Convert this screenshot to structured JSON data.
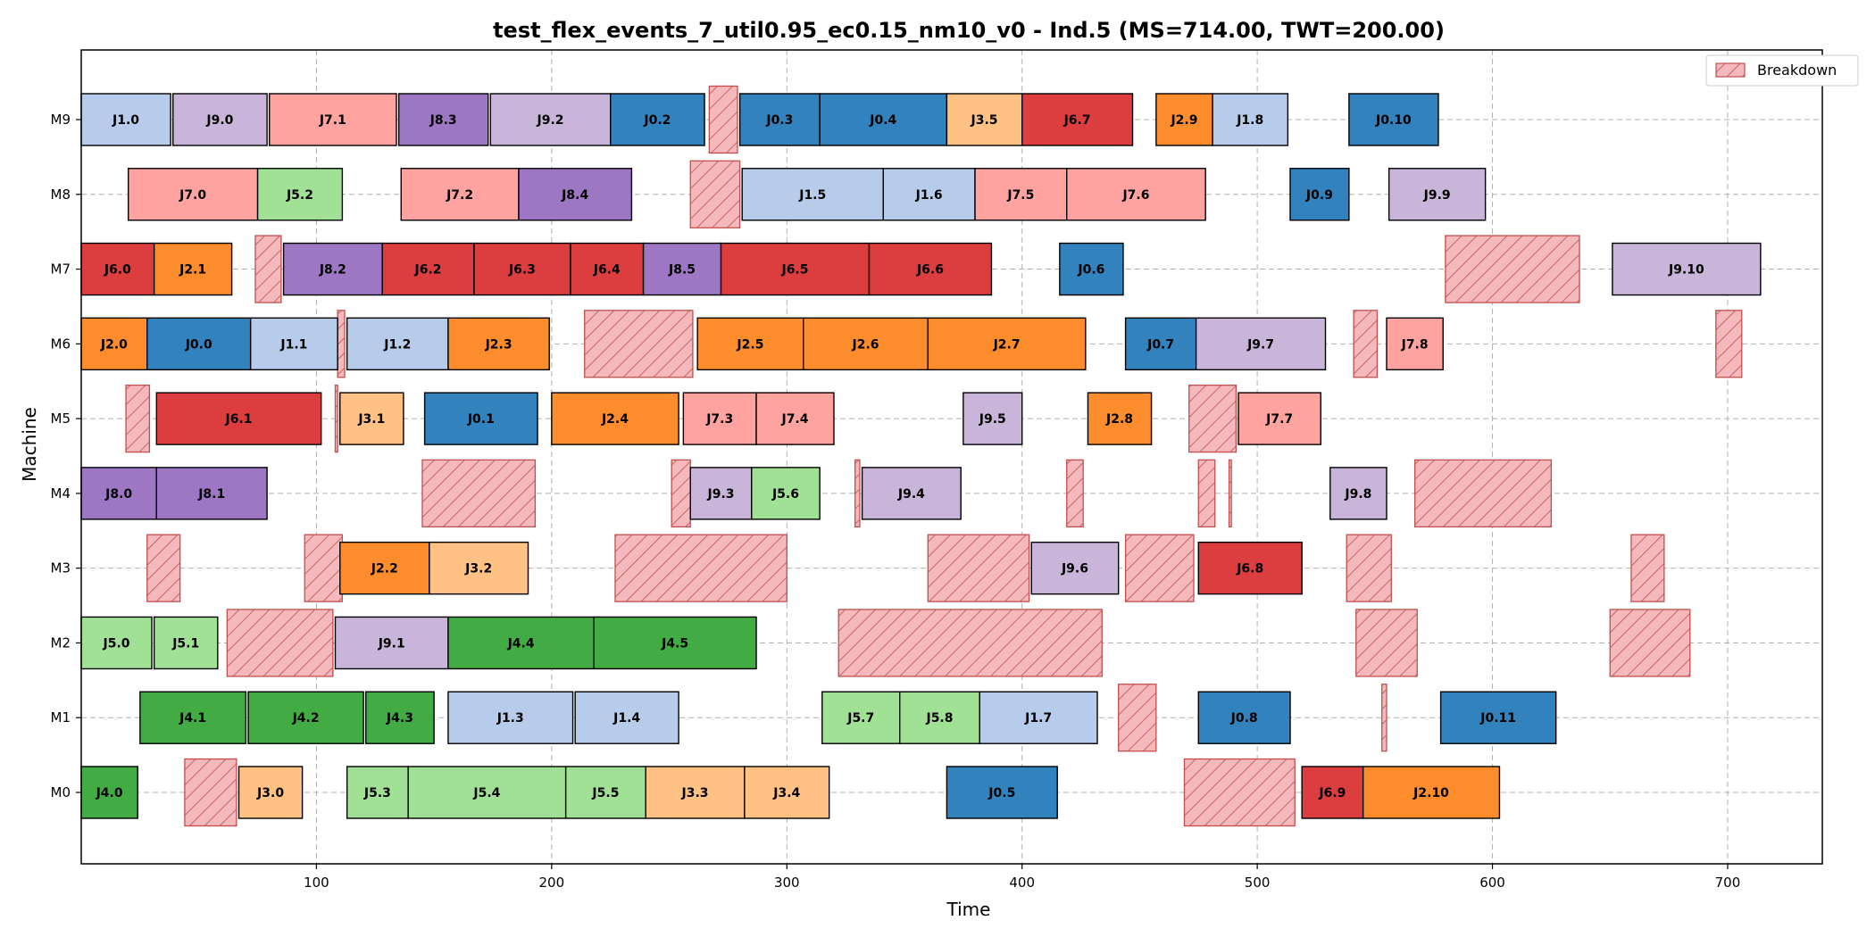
{
  "chart_data": {
    "type": "gantt",
    "title": "test_flex_events_7_util0.95_ec0.15_nm10_v0 - Ind.5 (MS=714.00, TWT=200.00)",
    "xlabel": "Time",
    "ylabel": "Machine",
    "xlim": [
      0,
      750
    ],
    "xticks": [
      100,
      200,
      300,
      400,
      500,
      600,
      700
    ],
    "machines": [
      "M0",
      "M1",
      "M2",
      "M3",
      "M4",
      "M5",
      "M6",
      "M7",
      "M8",
      "M9"
    ],
    "grid": true,
    "legend": {
      "position": "top-right",
      "entries": [
        {
          "label": "Breakdown",
          "color": "#f4b8bd",
          "edge": "#c0504d"
        }
      ]
    },
    "job_colors": {
      "J0": "#3182bd",
      "J1": "#b7cbea",
      "J2": "#fd8d2c",
      "J3": "#ffc184",
      "J4": "#42ab44",
      "J5": "#a1e195",
      "J6": "#dc3d3f",
      "J7": "#fea39f",
      "J8": "#9d76c4",
      "J9": "#c9b5d9"
    },
    "operations": [
      {
        "m": "M0",
        "label": "J4.0",
        "start": 0,
        "end": 24
      },
      {
        "m": "M0",
        "label": "J3.0",
        "start": 67,
        "end": 94
      },
      {
        "m": "M0",
        "label": "J5.3",
        "start": 113,
        "end": 139
      },
      {
        "m": "M0",
        "label": "J5.4",
        "start": 139,
        "end": 206
      },
      {
        "m": "M0",
        "label": "J5.5",
        "start": 206,
        "end": 240
      },
      {
        "m": "M0",
        "label": "J3.3",
        "start": 240,
        "end": 282
      },
      {
        "m": "M0",
        "label": "J3.4",
        "start": 282,
        "end": 318
      },
      {
        "m": "M0",
        "label": "J0.5",
        "start": 368,
        "end": 415
      },
      {
        "m": "M0",
        "label": "J6.9",
        "start": 519,
        "end": 545
      },
      {
        "m": "M0",
        "label": "J2.10",
        "start": 545,
        "end": 603
      },
      {
        "m": "M1",
        "label": "J4.1",
        "start": 25,
        "end": 70
      },
      {
        "m": "M1",
        "label": "J4.2",
        "start": 71,
        "end": 120
      },
      {
        "m": "M1",
        "label": "J4.3",
        "start": 121,
        "end": 150
      },
      {
        "m": "M1",
        "label": "J1.3",
        "start": 156,
        "end": 209
      },
      {
        "m": "M1",
        "label": "J1.4",
        "start": 210,
        "end": 254
      },
      {
        "m": "M1",
        "label": "J5.7",
        "start": 315,
        "end": 348
      },
      {
        "m": "M1",
        "label": "J5.8",
        "start": 348,
        "end": 382
      },
      {
        "m": "M1",
        "label": "J1.7",
        "start": 382,
        "end": 432
      },
      {
        "m": "M1",
        "label": "J0.8",
        "start": 475,
        "end": 514
      },
      {
        "m": "M1",
        "label": "J0.11",
        "start": 578,
        "end": 627
      },
      {
        "m": "M2",
        "label": "J5.0",
        "start": 0,
        "end": 30
      },
      {
        "m": "M2",
        "label": "J5.1",
        "start": 31,
        "end": 58
      },
      {
        "m": "M2",
        "label": "J9.1",
        "start": 108,
        "end": 156
      },
      {
        "m": "M2",
        "label": "J4.4",
        "start": 156,
        "end": 218
      },
      {
        "m": "M2",
        "label": "J4.5",
        "start": 218,
        "end": 287
      },
      {
        "m": "M3",
        "label": "J2.2",
        "start": 110,
        "end": 148
      },
      {
        "m": "M3",
        "label": "J3.2",
        "start": 148,
        "end": 190
      },
      {
        "m": "M3",
        "label": "J9.6",
        "start": 404,
        "end": 441
      },
      {
        "m": "M3",
        "label": "J6.8",
        "start": 475,
        "end": 519
      },
      {
        "m": "M4",
        "label": "J8.0",
        "start": 0,
        "end": 32
      },
      {
        "m": "M4",
        "label": "J8.1",
        "start": 32,
        "end": 79
      },
      {
        "m": "M4",
        "label": "J9.3",
        "start": 259,
        "end": 285
      },
      {
        "m": "M4",
        "label": "J5.6",
        "start": 285,
        "end": 314
      },
      {
        "m": "M4",
        "label": "J9.4",
        "start": 332,
        "end": 374
      },
      {
        "m": "M4",
        "label": "J9.8",
        "start": 531,
        "end": 555
      },
      {
        "m": "M5",
        "label": "J6.1",
        "start": 32,
        "end": 102
      },
      {
        "m": "M5",
        "label": "J3.1",
        "start": 110,
        "end": 137
      },
      {
        "m": "M5",
        "label": "J0.1",
        "start": 146,
        "end": 194
      },
      {
        "m": "M5",
        "label": "J2.4",
        "start": 200,
        "end": 254
      },
      {
        "m": "M5",
        "label": "J7.3",
        "start": 256,
        "end": 287
      },
      {
        "m": "M5",
        "label": "J7.4",
        "start": 287,
        "end": 320
      },
      {
        "m": "M5",
        "label": "J9.5",
        "start": 375,
        "end": 400
      },
      {
        "m": "M5",
        "label": "J2.8",
        "start": 428,
        "end": 455
      },
      {
        "m": "M5",
        "label": "J7.7",
        "start": 492,
        "end": 527
      },
      {
        "m": "M6",
        "label": "J2.0",
        "start": 0,
        "end": 28
      },
      {
        "m": "M6",
        "label": "J0.0",
        "start": 28,
        "end": 72
      },
      {
        "m": "M6",
        "label": "J1.1",
        "start": 72,
        "end": 109
      },
      {
        "m": "M6",
        "label": "J1.2",
        "start": 113,
        "end": 156
      },
      {
        "m": "M6",
        "label": "J2.3",
        "start": 156,
        "end": 199
      },
      {
        "m": "M6",
        "label": "J2.5",
        "start": 262,
        "end": 307
      },
      {
        "m": "M6",
        "label": "J2.6",
        "start": 307,
        "end": 360
      },
      {
        "m": "M6",
        "label": "J2.7",
        "start": 360,
        "end": 427
      },
      {
        "m": "M6",
        "label": "J0.7",
        "start": 444,
        "end": 474
      },
      {
        "m": "M6",
        "label": "J9.7",
        "start": 474,
        "end": 529
      },
      {
        "m": "M6",
        "label": "J7.8",
        "start": 555,
        "end": 579
      },
      {
        "m": "M7",
        "label": "J6.0",
        "start": 0,
        "end": 31
      },
      {
        "m": "M7",
        "label": "J2.1",
        "start": 31,
        "end": 64
      },
      {
        "m": "M7",
        "label": "J8.2",
        "start": 86,
        "end": 128
      },
      {
        "m": "M7",
        "label": "J6.2",
        "start": 128,
        "end": 167
      },
      {
        "m": "M7",
        "label": "J6.3",
        "start": 167,
        "end": 208
      },
      {
        "m": "M7",
        "label": "J6.4",
        "start": 208,
        "end": 239
      },
      {
        "m": "M7",
        "label": "J8.5",
        "start": 239,
        "end": 272
      },
      {
        "m": "M7",
        "label": "J6.5",
        "start": 272,
        "end": 335
      },
      {
        "m": "M7",
        "label": "J6.6",
        "start": 335,
        "end": 387
      },
      {
        "m": "M7",
        "label": "J0.6",
        "start": 416,
        "end": 443
      },
      {
        "m": "M7",
        "label": "J9.10",
        "start": 651,
        "end": 714
      },
      {
        "m": "M8",
        "label": "J7.0",
        "start": 20,
        "end": 75
      },
      {
        "m": "M8",
        "label": "J5.2",
        "start": 75,
        "end": 111
      },
      {
        "m": "M8",
        "label": "J7.2",
        "start": 136,
        "end": 186
      },
      {
        "m": "M8",
        "label": "J8.4",
        "start": 186,
        "end": 234
      },
      {
        "m": "M8",
        "label": "J1.5",
        "start": 281,
        "end": 341
      },
      {
        "m": "M8",
        "label": "J1.6",
        "start": 341,
        "end": 380
      },
      {
        "m": "M8",
        "label": "J7.5",
        "start": 380,
        "end": 419
      },
      {
        "m": "M8",
        "label": "J7.6",
        "start": 419,
        "end": 478
      },
      {
        "m": "M8",
        "label": "J0.9",
        "start": 514,
        "end": 539
      },
      {
        "m": "M8",
        "label": "J9.9",
        "start": 556,
        "end": 597
      },
      {
        "m": "M9",
        "label": "J1.0",
        "start": 0,
        "end": 38
      },
      {
        "m": "M9",
        "label": "J9.0",
        "start": 39,
        "end": 79
      },
      {
        "m": "M9",
        "label": "J7.1",
        "start": 80,
        "end": 134
      },
      {
        "m": "M9",
        "label": "J8.3",
        "start": 135,
        "end": 173
      },
      {
        "m": "M9",
        "label": "J9.2",
        "start": 174,
        "end": 225
      },
      {
        "m": "M9",
        "label": "J0.2",
        "start": 225,
        "end": 265
      },
      {
        "m": "M9",
        "label": "J0.3",
        "start": 280,
        "end": 314
      },
      {
        "m": "M9",
        "label": "J0.4",
        "start": 314,
        "end": 368
      },
      {
        "m": "M9",
        "label": "J3.5",
        "start": 368,
        "end": 400
      },
      {
        "m": "M9",
        "label": "J6.7",
        "start": 400,
        "end": 447
      },
      {
        "m": "M9",
        "label": "J2.9",
        "start": 457,
        "end": 481
      },
      {
        "m": "M9",
        "label": "J1.8",
        "start": 481,
        "end": 513
      },
      {
        "m": "M9",
        "label": "J0.10",
        "start": 539,
        "end": 577
      }
    ],
    "breakdowns": [
      {
        "m": "M0",
        "start": 44,
        "end": 66
      },
      {
        "m": "M0",
        "start": 469,
        "end": 516
      },
      {
        "m": "M1",
        "start": 441,
        "end": 457
      },
      {
        "m": "M1",
        "start": 553,
        "end": 555
      },
      {
        "m": "M2",
        "start": 62,
        "end": 107
      },
      {
        "m": "M2",
        "start": 322,
        "end": 434
      },
      {
        "m": "M2",
        "start": 542,
        "end": 568
      },
      {
        "m": "M2",
        "start": 650,
        "end": 684
      },
      {
        "m": "M3",
        "start": 28,
        "end": 42
      },
      {
        "m": "M3",
        "start": 95,
        "end": 111
      },
      {
        "m": "M3",
        "start": 227,
        "end": 300
      },
      {
        "m": "M3",
        "start": 360,
        "end": 403
      },
      {
        "m": "M3",
        "start": 444,
        "end": 473
      },
      {
        "m": "M3",
        "start": 538,
        "end": 557
      },
      {
        "m": "M3",
        "start": 659,
        "end": 673
      },
      {
        "m": "M4",
        "start": 145,
        "end": 193
      },
      {
        "m": "M4",
        "start": 251,
        "end": 259
      },
      {
        "m": "M4",
        "start": 329,
        "end": 331
      },
      {
        "m": "M4",
        "start": 419,
        "end": 426
      },
      {
        "m": "M4",
        "start": 475,
        "end": 482
      },
      {
        "m": "M4",
        "start": 488,
        "end": 489
      },
      {
        "m": "M4",
        "start": 567,
        "end": 625
      },
      {
        "m": "M5",
        "start": 19,
        "end": 29
      },
      {
        "m": "M5",
        "start": 108,
        "end": 109
      },
      {
        "m": "M5",
        "start": 471,
        "end": 491
      },
      {
        "m": "M6",
        "start": 109,
        "end": 112
      },
      {
        "m": "M6",
        "start": 214,
        "end": 260
      },
      {
        "m": "M6",
        "start": 541,
        "end": 551
      },
      {
        "m": "M6",
        "start": 695,
        "end": 706
      },
      {
        "m": "M7",
        "start": 74,
        "end": 85
      },
      {
        "m": "M7",
        "start": 580,
        "end": 637
      },
      {
        "m": "M8",
        "start": 259,
        "end": 280
      },
      {
        "m": "M9",
        "start": 267,
        "end": 279
      }
    ]
  }
}
